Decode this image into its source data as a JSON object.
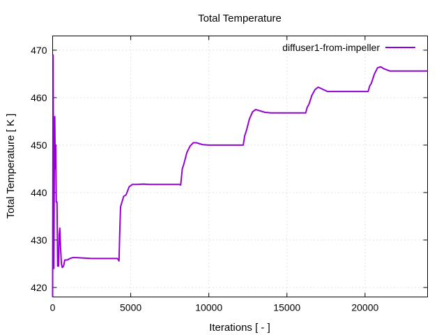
{
  "chart_data": {
    "type": "line",
    "title": "Total Temperature",
    "xlabel": "Iterations [ - ]",
    "ylabel": "Total Temperature [ K ]",
    "xlim": [
      0,
      24000
    ],
    "ylim": [
      418,
      473
    ],
    "xticks": [
      0,
      5000,
      10000,
      15000,
      20000
    ],
    "yticks": [
      420,
      430,
      440,
      450,
      460,
      470
    ],
    "grid": true,
    "legend_position": "top-right",
    "series": [
      {
        "name": "diffuser1-from-impeller",
        "color": "#9400d3",
        "x": [
          0,
          30,
          80,
          120,
          140,
          170,
          200,
          230,
          280,
          320,
          380,
          420,
          460,
          500,
          560,
          620,
          700,
          780,
          850,
          950,
          1100,
          1300,
          1500,
          2000,
          2500,
          3000,
          3500,
          4000,
          4150,
          4250,
          4300,
          4350,
          4420,
          4550,
          4700,
          4900,
          5100,
          5400,
          5800,
          6200,
          7000,
          7800,
          8100,
          8200,
          8300,
          8400,
          8600,
          8800,
          9000,
          9200,
          9600,
          10000,
          11000,
          12000,
          12200,
          12300,
          12400,
          12600,
          12800,
          13000,
          13200,
          13600,
          14000,
          15000,
          16000,
          16200,
          16300,
          16400,
          16600,
          16800,
          17000,
          17200,
          17600,
          18000,
          19000,
          20000,
          20200,
          20300,
          20400,
          20600,
          20800,
          21000,
          21200,
          21600,
          22000,
          23000,
          24000
        ],
        "y": [
          418,
          469,
          424,
          453,
          456,
          445,
          450,
          438,
          438,
          424.5,
          424.5,
          431,
          432.5,
          429,
          425,
          424.2,
          424.5,
          425.8,
          425.8,
          425.8,
          426.1,
          426.3,
          426.3,
          426.2,
          426.1,
          426.1,
          426.1,
          426.1,
          426.1,
          425.6,
          432,
          437,
          437.8,
          439.2,
          439.5,
          441.2,
          441.7,
          441.7,
          441.8,
          441.7,
          441.7,
          441.7,
          441.7,
          441.6,
          445.0,
          446.0,
          448.5,
          449.8,
          450.5,
          450.5,
          450.1,
          450.0,
          450.0,
          450.0,
          450.0,
          452.0,
          453.0,
          455.5,
          457.0,
          457.5,
          457.3,
          456.9,
          456.8,
          456.8,
          456.8,
          456.8,
          458.0,
          458.5,
          460.5,
          461.7,
          462.2,
          461.9,
          461.3,
          461.3,
          461.3,
          461.3,
          461.3,
          462.5,
          463.0,
          465.0,
          466.3,
          466.5,
          466.1,
          465.6,
          465.6,
          465.6,
          465.6
        ]
      }
    ]
  }
}
